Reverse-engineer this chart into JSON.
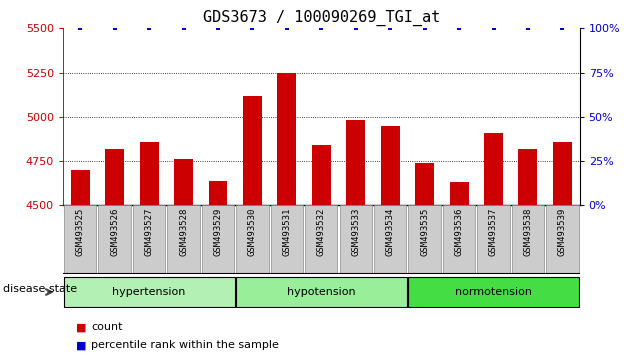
{
  "title": "GDS3673 / 100090269_TGI_at",
  "samples": [
    "GSM493525",
    "GSM493526",
    "GSM493527",
    "GSM493528",
    "GSM493529",
    "GSM493530",
    "GSM493531",
    "GSM493532",
    "GSM493533",
    "GSM493534",
    "GSM493535",
    "GSM493536",
    "GSM493537",
    "GSM493538",
    "GSM493539"
  ],
  "counts": [
    4700,
    4820,
    4860,
    4760,
    4640,
    5120,
    5250,
    4840,
    4980,
    4950,
    4740,
    4630,
    4910,
    4820,
    4860
  ],
  "percentile": [
    100,
    100,
    100,
    100,
    100,
    100,
    100,
    100,
    100,
    100,
    100,
    100,
    100,
    100,
    100
  ],
  "ylim_left": [
    4500,
    5500
  ],
  "ylim_right": [
    0,
    100
  ],
  "yticks_left": [
    4500,
    4750,
    5000,
    5250,
    5500
  ],
  "yticks_right": [
    0,
    25,
    50,
    75,
    100
  ],
  "bar_color": "#cc0000",
  "dot_color": "#0000cc",
  "bar_width": 0.55,
  "group_hypertension": {
    "label": "hypertension",
    "indices": [
      0,
      1,
      2,
      3,
      4
    ],
    "color": "#b3f0b3"
  },
  "group_hypotension": {
    "label": "hypotension",
    "indices": [
      5,
      6,
      7,
      8,
      9
    ],
    "color": "#99ee99"
  },
  "group_normotension": {
    "label": "normotension",
    "indices": [
      10,
      11,
      12,
      13,
      14
    ],
    "color": "#44dd44"
  },
  "xtick_bg_color": "#cccccc",
  "xtick_border_color": "#888888",
  "disease_state_label": "disease state",
  "legend_count_label": "count",
  "legend_percentile_label": "percentile rank within the sample",
  "title_fontsize": 11,
  "axis_color_left": "#cc0000",
  "axis_color_right": "#0000cc",
  "grid_color": "black",
  "grid_linestyle": ":",
  "grid_linewidth": 0.6,
  "gridlines_at": [
    4750,
    5000,
    5250
  ]
}
